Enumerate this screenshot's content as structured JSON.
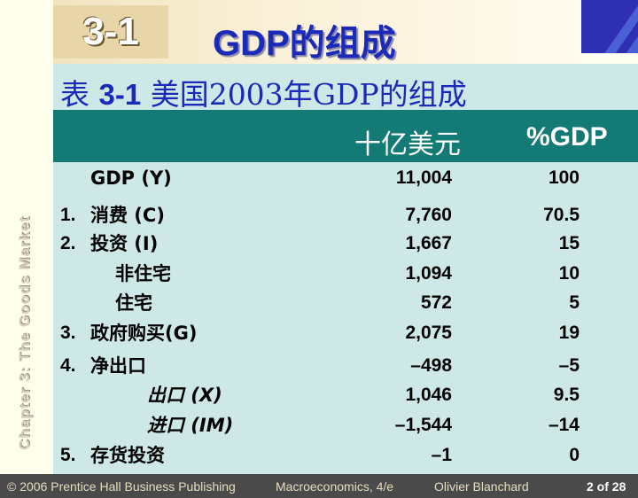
{
  "badge": "3-1",
  "slide_title": "GDP的组成",
  "table_title": {
    "prefix": "表 ",
    "number": "3-1",
    "text": " 美国2003年GDP的组成"
  },
  "header": {
    "billions": "十亿美元",
    "percent": "%GDP"
  },
  "rows": [
    {
      "num": "",
      "label": "GDP (Y)",
      "value": "11,004",
      "pct": "100"
    },
    {
      "num": "1.",
      "label": "消费 (C)",
      "value": "7,760",
      "pct": "70.5"
    },
    {
      "num": "2.",
      "label": "投资 (I)",
      "value": "1,667",
      "pct": "15"
    },
    {
      "num": "",
      "label": "非住宅",
      "value": "1,094",
      "pct": "10"
    },
    {
      "num": "",
      "label": "住宅",
      "value": "572",
      "pct": "5"
    },
    {
      "num": "3.",
      "label": "政府购买(G)",
      "value": "2,075",
      "pct": "19"
    },
    {
      "num": "4.",
      "label": "净出口",
      "value": "–498",
      "pct": "–5"
    },
    {
      "num": "",
      "label": "出口 (X)",
      "value": "1,046",
      "pct": "9.5"
    },
    {
      "num": "",
      "label": "进口 (IM)",
      "value": "–1,544",
      "pct": "–14"
    },
    {
      "num": "5.",
      "label": "存货投资",
      "value": "–1",
      "pct": "0"
    }
  ],
  "side_text": "Chapter 3: The Goods Market",
  "footer": {
    "copyright": "© 2006 Prentice Hall Business Publishing",
    "book": "Macroeconomics, 4/e",
    "author": "Olivier Blanchard",
    "page": "2 of 28"
  },
  "colors": {
    "title_blue": "#1b2ab8",
    "header_teal": "#147a76",
    "content_bg": "#cde8e6",
    "footer_bg": "#4a4a4a"
  }
}
